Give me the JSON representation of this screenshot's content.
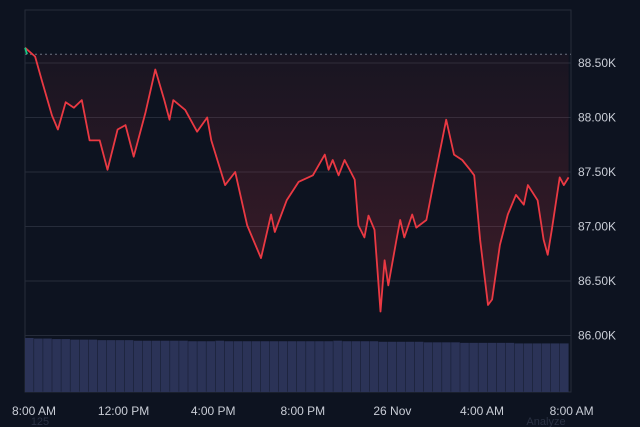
{
  "chart_data": {
    "type": "line",
    "title": "",
    "xlabel": "",
    "ylabel": "",
    "ylim": [
      85700,
      88900
    ],
    "grid": true,
    "reference_price": 88580,
    "colors": {
      "background": "#0d1320",
      "line": "#ea3943",
      "start_segment": "#16c784",
      "grid": "#262c3a",
      "volume": "#2b3357",
      "reference": "#6b7280"
    },
    "y_ticks": [
      {
        "value": 88500,
        "label": "88.50K"
      },
      {
        "value": 88000,
        "label": "88.00K"
      },
      {
        "value": 87500,
        "label": "87.50K"
      },
      {
        "value": 87000,
        "label": "87.00K"
      },
      {
        "value": 86500,
        "label": "86.50K"
      },
      {
        "value": 86000,
        "label": "86.00K"
      }
    ],
    "x_ticks": [
      {
        "time": "25 Nov 08:00",
        "label": "8:00 AM"
      },
      {
        "time": "25 Nov 12:00",
        "label": "12:00 PM"
      },
      {
        "time": "25 Nov 16:00",
        "label": "4:00 PM"
      },
      {
        "time": "25 Nov 20:00",
        "label": "8:00 PM"
      },
      {
        "time": "26 Nov 00:00",
        "label": "26 Nov"
      },
      {
        "time": "26 Nov 04:00",
        "label": "4:00 AM"
      },
      {
        "time": "26 Nov 08:00",
        "label": "8:00 AM"
      }
    ],
    "series": [
      {
        "points": [
          [
            "25 Nov 07:36",
            88640
          ],
          [
            "25 Nov 08:03",
            88560
          ],
          [
            "25 Nov 08:21",
            88340
          ],
          [
            "25 Nov 08:48",
            88020
          ],
          [
            "25 Nov 09:04",
            87890
          ],
          [
            "25 Nov 09:25",
            88140
          ],
          [
            "25 Nov 09:47",
            88090
          ],
          [
            "25 Nov 10:08",
            88160
          ],
          [
            "25 Nov 10:29",
            87790
          ],
          [
            "25 Nov 10:56",
            87790
          ],
          [
            "25 Nov 11:17",
            87520
          ],
          [
            "25 Nov 11:44",
            87890
          ],
          [
            "25 Nov 12:05",
            87930
          ],
          [
            "25 Nov 12:27",
            87640
          ],
          [
            "25 Nov 12:59",
            88050
          ],
          [
            "25 Nov 13:25",
            88440
          ],
          [
            "25 Nov 13:49",
            88160
          ],
          [
            "25 Nov 14:03",
            87980
          ],
          [
            "25 Nov 14:13",
            88160
          ],
          [
            "25 Nov 14:45",
            88070
          ],
          [
            "25 Nov 15:17",
            87870
          ],
          [
            "25 Nov 15:44",
            88000
          ],
          [
            "25 Nov 15:55",
            87790
          ],
          [
            "25 Nov 16:32",
            87380
          ],
          [
            "25 Nov 16:59",
            87500
          ],
          [
            "25 Nov 17:31",
            87010
          ],
          [
            "25 Nov 18:08",
            86710
          ],
          [
            "25 Nov 18:35",
            87110
          ],
          [
            "25 Nov 18:45",
            86950
          ],
          [
            "25 Nov 19:17",
            87240
          ],
          [
            "25 Nov 19:49",
            87410
          ],
          [
            "25 Nov 20:27",
            87470
          ],
          [
            "25 Nov 20:59",
            87660
          ],
          [
            "25 Nov 21:09",
            87520
          ],
          [
            "25 Nov 21:20",
            87610
          ],
          [
            "25 Nov 21:36",
            87470
          ],
          [
            "25 Nov 21:52",
            87610
          ],
          [
            "25 Nov 22:19",
            87430
          ],
          [
            "25 Nov 22:29",
            87010
          ],
          [
            "25 Nov 22:45",
            86900
          ],
          [
            "25 Nov 22:56",
            87100
          ],
          [
            "25 Nov 23:12",
            86970
          ],
          [
            "25 Nov 23:28",
            86220
          ],
          [
            "25 Nov 23:39",
            86690
          ],
          [
            "25 Nov 23:49",
            86460
          ],
          [
            "26 Nov 00:11",
            86880
          ],
          [
            "26 Nov 00:21",
            87060
          ],
          [
            "26 Nov 00:32",
            86900
          ],
          [
            "26 Nov 00:53",
            87110
          ],
          [
            "26 Nov 01:04",
            86990
          ],
          [
            "26 Nov 01:31",
            87060
          ],
          [
            "26 Nov 01:52",
            87430
          ],
          [
            "26 Nov 02:13",
            87790
          ],
          [
            "26 Nov 02:24",
            87980
          ],
          [
            "26 Nov 02:45",
            87660
          ],
          [
            "26 Nov 03:07",
            87610
          ],
          [
            "26 Nov 03:28",
            87520
          ],
          [
            "26 Nov 03:39",
            87470
          ],
          [
            "26 Nov 03:55",
            86880
          ],
          [
            "26 Nov 04:16",
            86280
          ],
          [
            "26 Nov 04:27",
            86330
          ],
          [
            "26 Nov 04:48",
            86830
          ],
          [
            "26 Nov 05:09",
            87110
          ],
          [
            "26 Nov 05:31",
            87290
          ],
          [
            "26 Nov 05:52",
            87200
          ],
          [
            "26 Nov 06:03",
            87380
          ],
          [
            "26 Nov 06:29",
            87240
          ],
          [
            "26 Nov 06:45",
            86880
          ],
          [
            "26 Nov 06:56",
            86740
          ],
          [
            "26 Nov 07:07",
            86970
          ],
          [
            "26 Nov 07:28",
            87450
          ],
          [
            "26 Nov 07:39",
            87380
          ],
          [
            "26 Nov 07:52",
            87450
          ]
        ]
      }
    ],
    "volume_levels": [
      1,
      0.99,
      0.99,
      0.98,
      0.98,
      0.97,
      0.97,
      0.97,
      0.96,
      0.96,
      0.96,
      0.96,
      0.95,
      0.95,
      0.95,
      0.95,
      0.95,
      0.95,
      0.94,
      0.94,
      0.94,
      0.95,
      0.94,
      0.94,
      0.94,
      0.94,
      0.94,
      0.94,
      0.94,
      0.94,
      0.94,
      0.94,
      0.94,
      0.94,
      0.95,
      0.94,
      0.94,
      0.94,
      0.94,
      0.93,
      0.93,
      0.93,
      0.93,
      0.93,
      0.92,
      0.92,
      0.92,
      0.92,
      0.91,
      0.91,
      0.91,
      0.91,
      0.91,
      0.91,
      0.9,
      0.9,
      0.9,
      0.9,
      0.9,
      0.9
    ],
    "footer_left": "125",
    "footer_right": "Analyze"
  }
}
